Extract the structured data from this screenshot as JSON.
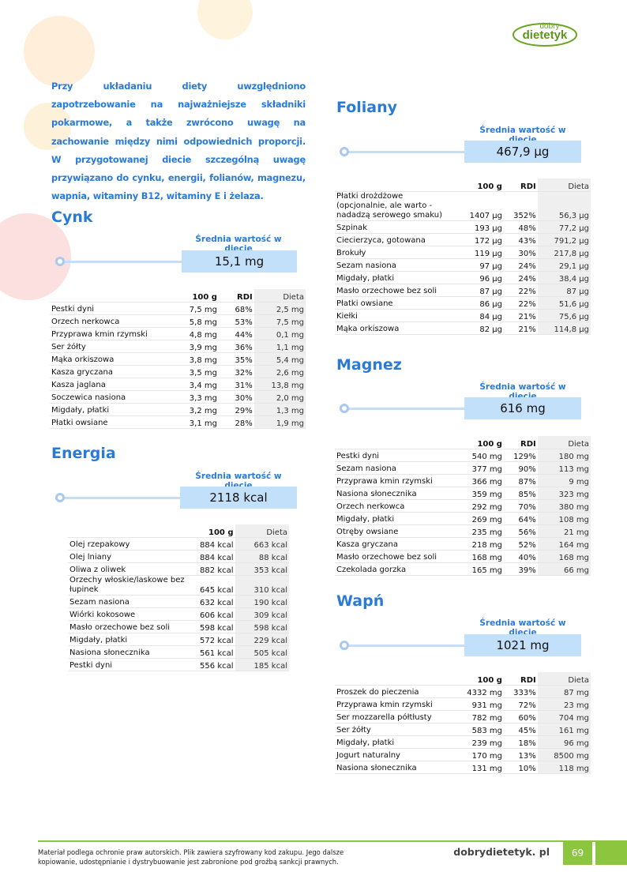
{
  "logo": {
    "line1": "dobry",
    "line2": "dietetyk",
    "color": "#6aa521"
  },
  "intro": "Przy układaniu diety uwzględniono zapotrzebowanie na najważniejsze składniki pokarmowe, a także zwrócono uwagę na zachowanie między nimi odpowiednich proporcji. W przygotowanej diecie szczególną uwagę przywiązano do cynku, energii, folianów, magnezu, wapnia, witaminy B12, witaminy E i żelaza.",
  "avg_label": "Średnia wartość w diecie",
  "accent": "#2a7bd6",
  "sections": {
    "cynk": {
      "title": "Cynk",
      "value": "15,1 mg",
      "headers": [
        "",
        "100 g",
        "RDI",
        "Dieta"
      ],
      "rows": [
        [
          "Pestki dyni",
          "7,5 mg",
          "68%",
          "2,5 mg"
        ],
        [
          "Orzech nerkowca",
          "5,8 mg",
          "53%",
          "7,5 mg"
        ],
        [
          "Przyprawa kmin rzymski",
          "4,8 mg",
          "44%",
          "0,1 mg"
        ],
        [
          "Ser żółty",
          "3,9 mg",
          "36%",
          "1,1 mg"
        ],
        [
          "Mąka orkiszowa",
          "3,8 mg",
          "35%",
          "5,4 mg"
        ],
        [
          "Kasza gryczana",
          "3,5 mg",
          "32%",
          "2,6 mg"
        ],
        [
          "Kasza jaglana",
          "3,4 mg",
          "31%",
          "13,8 mg"
        ],
        [
          "Soczewica nasiona",
          "3,3 mg",
          "30%",
          "2,0 mg"
        ],
        [
          "Migdały, płatki",
          "3,2 mg",
          "29%",
          "1,3 mg"
        ],
        [
          "Płatki owsiane",
          "3,1 mg",
          "28%",
          "1,9 mg"
        ]
      ]
    },
    "energia": {
      "title": "Energia",
      "value": "2118 kcal",
      "headers": [
        "",
        "100 g",
        "Dieta"
      ],
      "rows": [
        [
          "Olej rzepakowy",
          "884 kcal",
          "663 kcal"
        ],
        [
          "Olej lniany",
          "884 kcal",
          "88 kcal"
        ],
        [
          "Oliwa z oliwek",
          "882 kcal",
          "353 kcal"
        ],
        [
          "Orzechy włoskie/laskowe bez łupinek",
          "645 kcal",
          "310 kcal"
        ],
        [
          "Sezam nasiona",
          "632 kcal",
          "190 kcal"
        ],
        [
          "Wiórki kokosowe",
          "606 kcal",
          "309 kcal"
        ],
        [
          "Masło orzechowe bez soli",
          "598 kcal",
          "598 kcal"
        ],
        [
          "Migdały, płatki",
          "572 kcal",
          "229 kcal"
        ],
        [
          "Nasiona słonecznika",
          "561 kcal",
          "505 kcal"
        ],
        [
          "Pestki dyni",
          "556 kcal",
          "185 kcal"
        ]
      ]
    },
    "foliany": {
      "title": "Foliany",
      "value": "467,9 µg",
      "headers": [
        "",
        "100 g",
        "RDI",
        "Dieta"
      ],
      "rows": [
        [
          "Płatki drożdżowe (opcjonalnie, ale warto - nadadzą serowego smaku)",
          "1407 µg",
          "352%",
          "56,3 µg"
        ],
        [
          "Szpinak",
          "193 µg",
          "48%",
          "77,2 µg"
        ],
        [
          "Ciecierzyca, gotowana",
          "172 µg",
          "43%",
          "791,2 µg"
        ],
        [
          "Brokuły",
          "119 µg",
          "30%",
          "217,8 µg"
        ],
        [
          "Sezam nasiona",
          "97 µg",
          "24%",
          "29,1 µg"
        ],
        [
          "Migdały, płatki",
          "96 µg",
          "24%",
          "38,4 µg"
        ],
        [
          "Masło orzechowe bez soli",
          "87 µg",
          "22%",
          "87 µg"
        ],
        [
          "Płatki owsiane",
          "86 µg",
          "22%",
          "51,6 µg"
        ],
        [
          "Kiełki",
          "84 µg",
          "21%",
          "75,6 µg"
        ],
        [
          "Mąka orkiszowa",
          "82 µg",
          "21%",
          "114,8 µg"
        ]
      ]
    },
    "magnez": {
      "title": "Magnez",
      "value": "616 mg",
      "headers": [
        "",
        "100 g",
        "RDI",
        "Dieta"
      ],
      "rows": [
        [
          "Pestki dyni",
          "540 mg",
          "129%",
          "180 mg"
        ],
        [
          "Sezam nasiona",
          "377 mg",
          "90%",
          "113 mg"
        ],
        [
          "Przyprawa kmin rzymski",
          "366 mg",
          "87%",
          "9 mg"
        ],
        [
          "Nasiona słonecznika",
          "359 mg",
          "85%",
          "323 mg"
        ],
        [
          "Orzech nerkowca",
          "292 mg",
          "70%",
          "380 mg"
        ],
        [
          "Migdały, płatki",
          "269 mg",
          "64%",
          "108 mg"
        ],
        [
          "Otręby owsiane",
          "235 mg",
          "56%",
          "21 mg"
        ],
        [
          "Kasza gryczana",
          "218 mg",
          "52%",
          "164 mg"
        ],
        [
          "Masło orzechowe bez soli",
          "168 mg",
          "40%",
          "168 mg"
        ],
        [
          "Czekolada gorzka",
          "165 mg",
          "39%",
          "66 mg"
        ]
      ]
    },
    "wapn": {
      "title": "Wapń",
      "value": "1021 mg",
      "headers": [
        "",
        "100 g",
        "RDI",
        "Dieta"
      ],
      "rows": [
        [
          "Proszek do pieczenia",
          "4332 mg",
          "333%",
          "87 mg"
        ],
        [
          "Przyprawa kmin rzymski",
          "931 mg",
          "72%",
          "23 mg"
        ],
        [
          "Ser mozzarella półtłusty",
          "782 mg",
          "60%",
          "704 mg"
        ],
        [
          "Ser żółty",
          "583 mg",
          "45%",
          "161 mg"
        ],
        [
          "Migdały, płatki",
          "239 mg",
          "18%",
          "96 mg"
        ],
        [
          "Jogurt naturalny",
          "170 mg",
          "13%",
          "8500 mg"
        ],
        [
          "Nasiona słonecznika",
          "131 mg",
          "10%",
          "118 mg"
        ]
      ]
    }
  },
  "footer": {
    "notice": "Materiał podlega ochronie praw autorskich. Plik zawiera szyfrowany kod zakupu. Jego dalsze kopiowanie, udostępnianie i dystrybuowanie jest zabronione pod groźbą sankcji prawnych.",
    "site": "dobrydietetyk. pl",
    "page": "69"
  }
}
